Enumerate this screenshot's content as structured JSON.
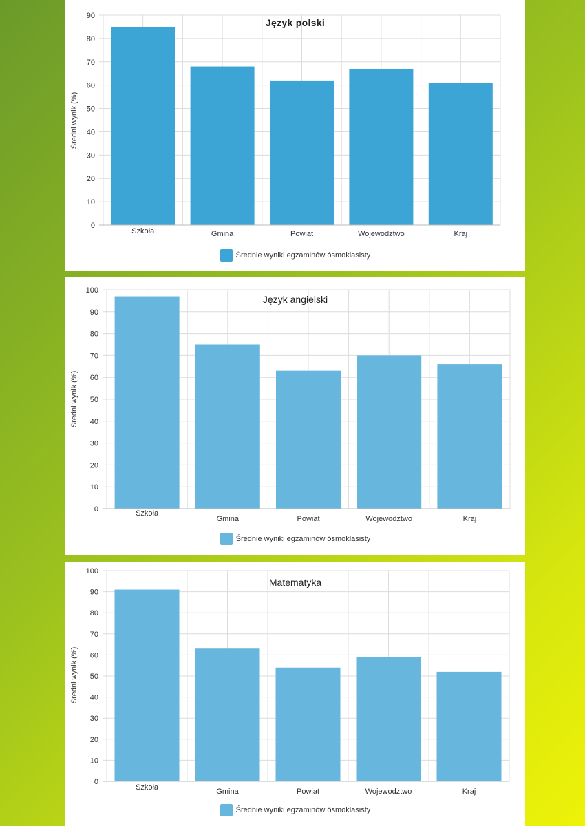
{
  "charts": [
    {
      "type": "bar",
      "title": "Język polski",
      "ylabel": "Średni wynik (%)",
      "categories": [
        "Szkoła",
        "Gmina",
        "Powiat",
        "Wojewodztwo",
        "Kraj"
      ],
      "series": [
        {
          "name": "Średnie wyniki egzaminów ósmoklasisty",
          "values": [
            85,
            68,
            62,
            67,
            61
          ]
        }
      ],
      "yticks": [
        "0",
        "10",
        "20",
        "30",
        "40",
        "50",
        "60",
        "70",
        "80",
        "90"
      ],
      "ylim": [
        0,
        90
      ],
      "grid": true,
      "legend_position": "bottom",
      "bar_color": "#3da4d6"
    },
    {
      "type": "bar",
      "title": "Język angielski",
      "ylabel": "Średni wynik (%)",
      "categories": [
        "Szkoła",
        "Gmina",
        "Powiat",
        "Wojewodztwo",
        "Kraj"
      ],
      "series": [
        {
          "name": "Średnie wyniki egzaminów ósmoklasisty",
          "values": [
            97,
            75,
            63,
            70,
            66
          ]
        }
      ],
      "yticks": [
        "0",
        "10",
        "20",
        "30",
        "40",
        "50",
        "60",
        "70",
        "80",
        "90",
        "100"
      ],
      "ylim": [
        0,
        100
      ],
      "grid": true,
      "legend_position": "bottom",
      "bar_color": "#67b6dd"
    },
    {
      "type": "bar",
      "title": "Matematyka",
      "ylabel": "Średni wynik (%)",
      "categories": [
        "Szkoła",
        "Gmina",
        "Powiat",
        "Wojewodztwo",
        "Kraj"
      ],
      "series": [
        {
          "name": "Średnie wyniki egzaminów ósmoklasisty",
          "values": [
            91,
            63,
            54,
            59,
            52
          ]
        }
      ],
      "yticks": [
        "0",
        "10",
        "20",
        "30",
        "40",
        "50",
        "60",
        "70",
        "80",
        "90",
        "100"
      ],
      "ylim": [
        0,
        100
      ],
      "grid": true,
      "legend_position": "bottom",
      "bar_color": "#67b6dd"
    }
  ],
  "chart_data": [
    {
      "type": "bar",
      "title": "Język polski",
      "ylabel": "Średni wynik (%)",
      "categories": [
        "Szkoła",
        "Gmina",
        "Powiat",
        "Wojewodztwo",
        "Kraj"
      ],
      "series": [
        {
          "name": "Średnie wyniki egzaminów ósmoklasisty",
          "values": [
            85,
            68,
            62,
            67,
            61
          ]
        }
      ],
      "ylim": [
        0,
        90
      ]
    },
    {
      "type": "bar",
      "title": "Język angielski",
      "ylabel": "Średni wynik (%)",
      "categories": [
        "Szkoła",
        "Gmina",
        "Powiat",
        "Wojewodztwo",
        "Kraj"
      ],
      "series": [
        {
          "name": "Średnie wyniki egzaminów ósmoklasisty",
          "values": [
            97,
            75,
            63,
            70,
            66
          ]
        }
      ],
      "ylim": [
        0,
        100
      ]
    },
    {
      "type": "bar",
      "title": "Matematyka",
      "ylabel": "Średni wynik (%)",
      "categories": [
        "Szkoła",
        "Gmina",
        "Powiat",
        "Wojewodztwo",
        "Kraj"
      ],
      "series": [
        {
          "name": "Średnie wyniki egzaminów ósmoklasisty",
          "values": [
            91,
            63,
            54,
            59,
            52
          ]
        }
      ],
      "ylim": [
        0,
        100
      ]
    }
  ]
}
